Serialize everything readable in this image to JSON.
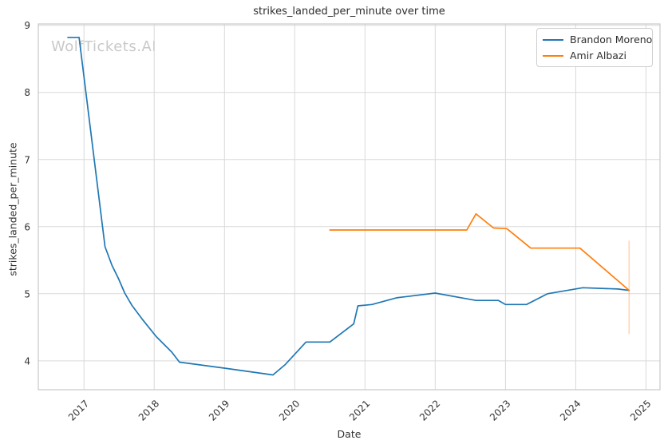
{
  "watermark": "WolfTickets.AI",
  "chart_data": {
    "type": "line",
    "title": "strikes_landed_per_minute over time",
    "xlabel": "Date",
    "ylabel": "strikes_landed_per_minute",
    "xlim": [
      2016.35,
      2025.2
    ],
    "ylim": [
      3.57,
      9.02
    ],
    "x_ticks": [
      2017,
      2018,
      2019,
      2020,
      2021,
      2022,
      2023,
      2024,
      2025
    ],
    "y_ticks": [
      4,
      5,
      6,
      7,
      8,
      9
    ],
    "grid": true,
    "legend_position": "upper right",
    "colors": {
      "grid": "#d9d9d9",
      "spine": "#c8c8c8",
      "text": "#333333",
      "watermark": "#c9c9c9",
      "error_bar": "rgba(255,127,14,0.32)"
    },
    "series": [
      {
        "name": "Brandon Moreno",
        "color": "#1f77b4",
        "points": [
          [
            2016.77,
            8.82
          ],
          [
            2016.93,
            8.82
          ],
          [
            2017.3,
            5.7
          ],
          [
            2017.4,
            5.42
          ],
          [
            2017.49,
            5.23
          ],
          [
            2017.58,
            5.01
          ],
          [
            2017.68,
            4.83
          ],
          [
            2017.83,
            4.62
          ],
          [
            2018.03,
            4.36
          ],
          [
            2018.25,
            4.13
          ],
          [
            2018.36,
            3.98
          ],
          [
            2018.65,
            3.94
          ],
          [
            2019.01,
            3.89
          ],
          [
            2019.69,
            3.79
          ],
          [
            2019.86,
            3.94
          ],
          [
            2020.16,
            4.28
          ],
          [
            2020.5,
            4.28
          ],
          [
            2020.84,
            4.55
          ],
          [
            2020.9,
            4.82
          ],
          [
            2021.1,
            4.84
          ],
          [
            2021.45,
            4.94
          ],
          [
            2022.0,
            5.01
          ],
          [
            2022.42,
            4.93
          ],
          [
            2022.58,
            4.9
          ],
          [
            2022.9,
            4.9
          ],
          [
            2023.0,
            4.84
          ],
          [
            2023.3,
            4.84
          ],
          [
            2023.6,
            5.0
          ],
          [
            2024.1,
            5.09
          ],
          [
            2024.6,
            5.07
          ],
          [
            2024.76,
            5.05
          ]
        ]
      },
      {
        "name": "Amir Albazi",
        "color": "#ff7f0e",
        "points": [
          [
            2020.5,
            5.95
          ],
          [
            2022.45,
            5.95
          ],
          [
            2022.58,
            6.19
          ],
          [
            2022.83,
            5.98
          ],
          [
            2023.02,
            5.97
          ],
          [
            2023.36,
            5.68
          ],
          [
            2024.06,
            5.68
          ],
          [
            2024.76,
            5.05
          ]
        ],
        "error_bar": {
          "x": 2024.76,
          "y_low": 4.4,
          "y_high": 5.79
        }
      }
    ]
  }
}
